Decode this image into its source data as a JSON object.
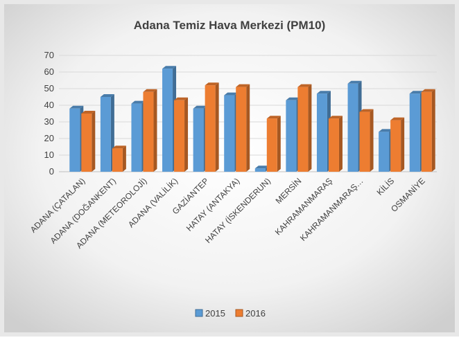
{
  "chart_data": {
    "type": "bar3d",
    "title": "Adana Temiz Hava Merkezi (PM10)",
    "categories": [
      "ADANA (ÇATALAN)",
      "ADANA (DOĞANKENT)",
      "ADANA (METEOROLOJİ)",
      "ADANA (VALİLİK)",
      "GAZİANTEP",
      "HATAY (ANTAKYA)",
      "HATAY (İSKENDERUN)",
      "MERSİN",
      "KAHRAMANMARAŞ",
      "KAHRAMANMARAŞ…",
      "KİLİS",
      "OSMANİYE"
    ],
    "series": [
      {
        "name": "2015",
        "color": "#5b9bd5",
        "values": [
          38,
          45,
          41,
          62,
          38,
          46,
          2,
          43,
          47,
          53,
          24,
          47
        ]
      },
      {
        "name": "2016",
        "color": "#ed7d31",
        "values": [
          35,
          14,
          48,
          43,
          52,
          51,
          32,
          51,
          32,
          36,
          31,
          48
        ]
      }
    ],
    "ylim": [
      0,
      70
    ],
    "yticks": [
      0,
      10,
      20,
      30,
      40,
      50,
      60,
      70
    ],
    "grid": true,
    "legend": "bottom"
  }
}
